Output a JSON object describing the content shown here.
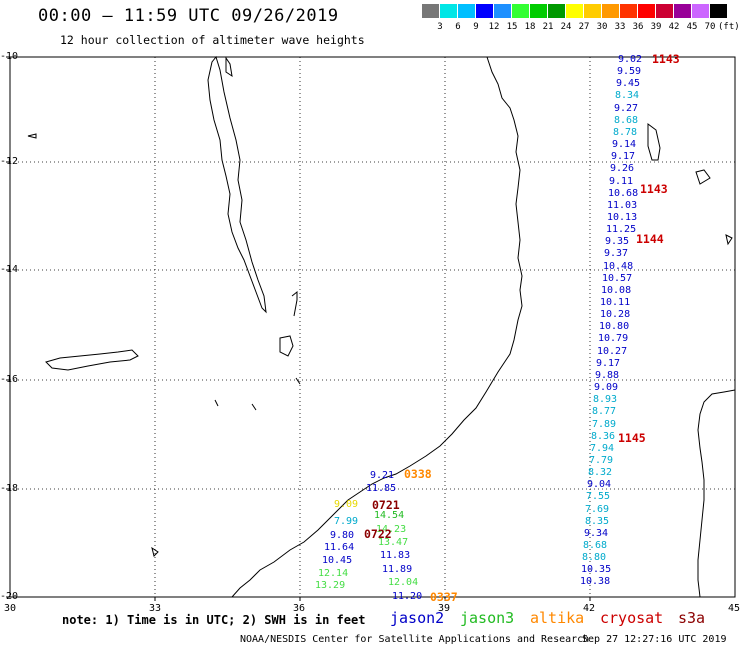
{
  "title": "00:00 – 11:59 UTC 09/26/2019",
  "subtitle": "12 hour collection of altimeter wave heights",
  "legend": {
    "labels": [
      "3",
      "6",
      "9",
      "12",
      "15",
      "18",
      "21",
      "24",
      "27",
      "30",
      "33",
      "36",
      "39",
      "42",
      "45",
      "70"
    ],
    "unit": "(ft)",
    "colors": [
      "#777777",
      "#00e6e6",
      "#00bfff",
      "#0000ff",
      "#1e90ff",
      "#33ff33",
      "#00cc00",
      "#009900",
      "#ffff00",
      "#ffcc00",
      "#ff9900",
      "#ff3300",
      "#ff0000",
      "#cc0033",
      "#990099",
      "#cc66ff",
      "#000000"
    ]
  },
  "axes": {
    "lat_labels": [
      "-10",
      "-12",
      "-14",
      "-16",
      "-18",
      "-20"
    ],
    "lon_labels": [
      "30",
      "33",
      "36",
      "39",
      "42",
      "45"
    ]
  },
  "wave_columns": {
    "east_track": [
      "9.02",
      "9.59",
      "9.45",
      "8.34",
      "9.27",
      "8.68",
      "8.78",
      "9.14",
      "9.17",
      "9.26",
      "9.11",
      "10.68",
      "11.03",
      "10.13",
      "11.25",
      "9.35",
      "9.37",
      "10.48",
      "10.57",
      "10.08",
      "10.11",
      "10.28",
      "10.80",
      "10.79",
      "10.27",
      "9.17",
      "9.88",
      "9.09",
      "8.93",
      "8.77",
      "7.89",
      "8.36",
      "7.94",
      "7.79",
      "8.32",
      "9.04",
      "7.55",
      "7.69",
      "8.35",
      "9.34",
      "8.68",
      "8.80",
      "10.35",
      "10.38"
    ],
    "channel_track": [
      "9.21",
      "11.85",
      "9.09",
      "14.54",
      "7.99",
      "14.23",
      "9.80",
      "13.47",
      "11.64",
      "10.45",
      "11.83",
      "11.89",
      "12.14",
      "12.04",
      "13.29",
      "11.20"
    ]
  },
  "times": {
    "t1143a": "1143",
    "t1143b": "1143",
    "t1144": "1144",
    "t1145": "1145",
    "t0338": "0338",
    "t0721": "0721",
    "t0722": "0722",
    "t0337": "0337"
  },
  "note": "note: 1) Time is in UTC; 2) SWH is in feet",
  "satellites": {
    "jason2": "jason2",
    "jason3": "jason3",
    "altika": "altika",
    "cryosat": "cryosat",
    "s3a": "s3a"
  },
  "footer": {
    "center": "NOAA/NESDIS Center for Satellite Applications and Research",
    "date": "Sep 27 12:27:16 UTC 2019"
  }
}
